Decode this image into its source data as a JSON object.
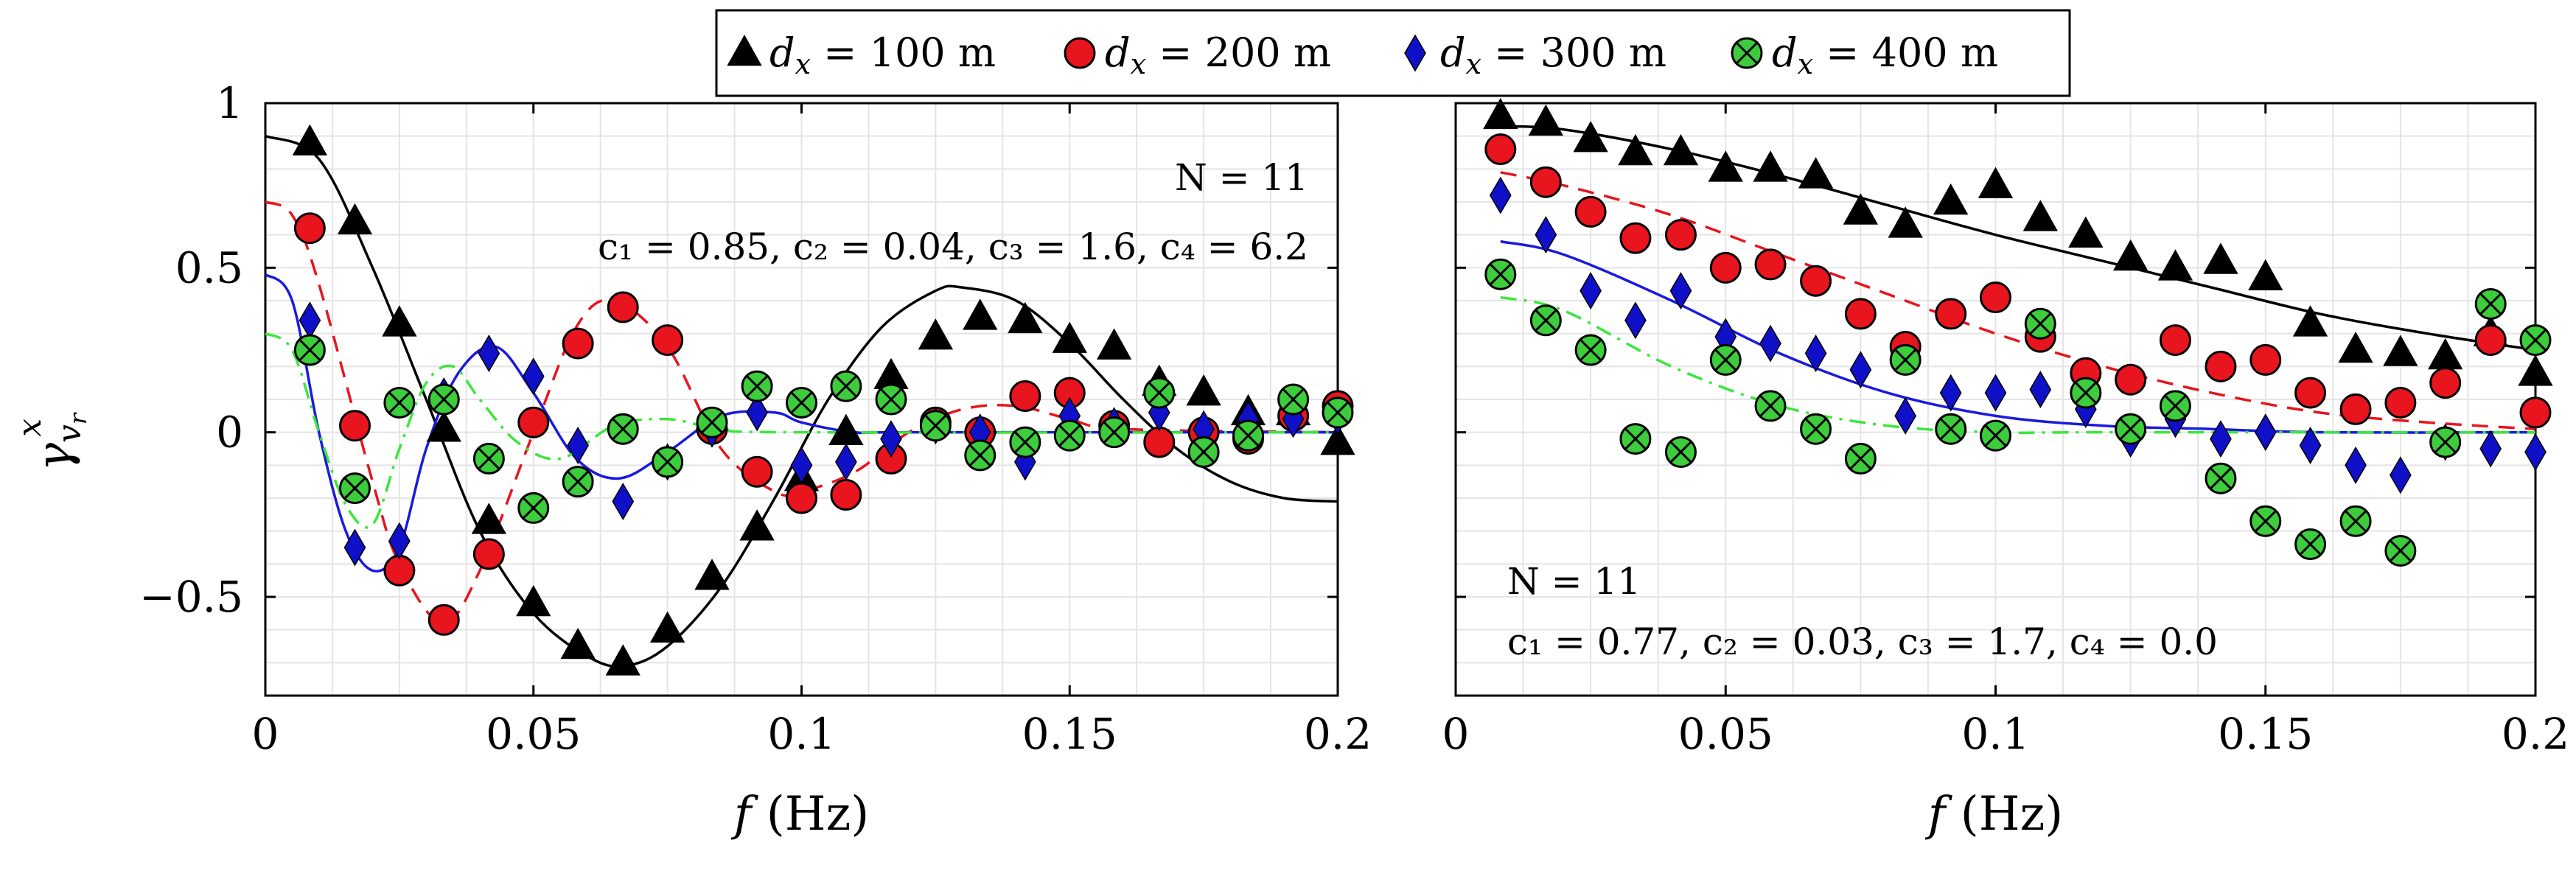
{
  "chart_data": [
    {
      "type": "scatter",
      "panel": "left",
      "xlabel": "f (Hz)",
      "ylabel": "γ^x_{v_r}",
      "xlim": [
        0,
        0.2
      ],
      "ylim": [
        -0.8,
        1.0
      ],
      "xticks": [
        0,
        0.05,
        0.1,
        0.15,
        0.2
      ],
      "xtick_labels": [
        "0",
        "0.05",
        "0.1",
        "0.15",
        "0.2"
      ],
      "yticks": [
        -0.5,
        0,
        0.5,
        1
      ],
      "ytick_labels": [
        "−0.5",
        "0",
        "0.5",
        "1"
      ],
      "grid": true,
      "annotations": [
        "N = 11",
        "c₁ = 0.85, c₂ = 0.04, c₃ = 1.6, c₄ = 6.2"
      ],
      "series": [
        {
          "name": "d_x = 100 m",
          "marker": "triangle",
          "color": "#000000",
          "x": [
            0.0083,
            0.0167,
            0.025,
            0.0333,
            0.0417,
            0.05,
            0.0583,
            0.0667,
            0.075,
            0.0833,
            0.0917,
            0.1,
            0.1083,
            0.1167,
            0.125,
            0.1333,
            0.1417,
            0.15,
            0.1583,
            0.1667,
            0.175,
            0.1833,
            0.1917,
            0.2
          ],
          "y": [
            0.88,
            0.64,
            0.33,
            0.01,
            -0.27,
            -0.52,
            -0.65,
            -0.7,
            -0.6,
            -0.44,
            -0.29,
            -0.14,
            0.0,
            0.17,
            0.29,
            0.35,
            0.34,
            0.28,
            0.26,
            0.15,
            0.12,
            0.06,
            0.06,
            -0.03
          ]
        },
        {
          "name": "d_x = 200 m",
          "marker": "circle",
          "color": "#e8141e",
          "x": [
            0.0083,
            0.0167,
            0.025,
            0.0333,
            0.0417,
            0.05,
            0.0583,
            0.0667,
            0.075,
            0.0833,
            0.0917,
            0.1,
            0.1083,
            0.1167,
            0.125,
            0.1333,
            0.1417,
            0.15,
            0.1583,
            0.1667,
            0.175,
            0.1833,
            0.1917,
            0.2
          ],
          "y": [
            0.62,
            0.02,
            -0.42,
            -0.57,
            -0.37,
            0.03,
            0.27,
            0.38,
            0.28,
            0.01,
            -0.12,
            -0.2,
            -0.19,
            -0.08,
            0.03,
            0.0,
            0.11,
            0.12,
            0.02,
            -0.03,
            0.0,
            -0.02,
            0.05,
            0.08
          ]
        },
        {
          "name": "d_x = 300 m",
          "marker": "diamond",
          "color": "#1010c8",
          "x": [
            0.0083,
            0.0167,
            0.025,
            0.0333,
            0.0417,
            0.05,
            0.0583,
            0.0667,
            0.075,
            0.0833,
            0.0917,
            0.1,
            0.1083,
            0.1167,
            0.125,
            0.1333,
            0.1417,
            0.15,
            0.1583,
            0.1667,
            0.175,
            0.1833,
            0.1917,
            0.2
          ],
          "y": [
            0.34,
            -0.35,
            -0.33,
            0.11,
            0.24,
            0.17,
            -0.04,
            -0.21,
            -0.09,
            0.01,
            0.06,
            -0.1,
            -0.09,
            -0.02,
            0.02,
            0.0,
            -0.09,
            0.05,
            0.02,
            0.06,
            0.01,
            0.04,
            0.04,
            0.05
          ]
        },
        {
          "name": "d_x = 400 m",
          "marker": "circle-cross",
          "color": "#3ccc3c",
          "x": [
            0.0083,
            0.0167,
            0.025,
            0.0333,
            0.0417,
            0.05,
            0.0583,
            0.0667,
            0.075,
            0.0833,
            0.0917,
            0.1,
            0.1083,
            0.1167,
            0.125,
            0.1333,
            0.1417,
            0.15,
            0.1583,
            0.1667,
            0.175,
            0.1833,
            0.1917,
            0.2
          ],
          "y": [
            0.25,
            -0.17,
            0.09,
            0.1,
            -0.08,
            -0.23,
            -0.15,
            0.01,
            -0.09,
            0.03,
            0.14,
            0.09,
            0.14,
            0.1,
            0.02,
            -0.07,
            -0.03,
            -0.01,
            0.0,
            0.12,
            -0.06,
            -0.01,
            0.1,
            0.06
          ]
        }
      ],
      "fit_lines": [
        {
          "name": "d_x = 100 m",
          "style": "solid",
          "color": "#000000",
          "x": [
            0,
            0.01,
            0.02,
            0.03,
            0.04,
            0.05,
            0.06,
            0.067,
            0.075,
            0.085,
            0.095,
            0.105,
            0.115,
            0.125,
            0.13,
            0.14,
            0.15,
            0.16,
            0.17,
            0.18,
            0.19,
            0.2
          ],
          "y": [
            0.9,
            0.83,
            0.5,
            0.1,
            -0.3,
            -0.55,
            -0.68,
            -0.71,
            -0.65,
            -0.47,
            -0.2,
            0.1,
            0.32,
            0.43,
            0.44,
            0.4,
            0.27,
            0.1,
            -0.05,
            -0.15,
            -0.2,
            -0.21
          ]
        },
        {
          "name": "d_x = 200 m",
          "style": "dashed",
          "color": "#e8141e",
          "x": [
            0,
            0.005,
            0.01,
            0.02,
            0.025,
            0.033,
            0.04,
            0.05,
            0.058,
            0.065,
            0.075,
            0.085,
            0.095,
            0.1,
            0.11,
            0.12,
            0.13,
            0.14,
            0.15,
            0.16,
            0.2
          ],
          "y": [
            0.7,
            0.66,
            0.45,
            -0.15,
            -0.4,
            -0.58,
            -0.42,
            0.0,
            0.32,
            0.4,
            0.26,
            -0.05,
            -0.18,
            -0.18,
            -0.12,
            0.0,
            0.07,
            0.08,
            0.04,
            0.01,
            0.0
          ]
        },
        {
          "name": "d_x = 300 m",
          "style": "solid",
          "color": "#1a1ae0",
          "x": [
            0,
            0.005,
            0.01,
            0.015,
            0.02,
            0.025,
            0.03,
            0.036,
            0.043,
            0.05,
            0.058,
            0.066,
            0.075,
            0.085,
            0.095,
            0.1,
            0.11,
            0.12,
            0.2
          ],
          "y": [
            0.48,
            0.4,
            0.0,
            -0.3,
            -0.42,
            -0.35,
            -0.05,
            0.18,
            0.26,
            0.12,
            -0.08,
            -0.14,
            -0.06,
            0.05,
            0.06,
            0.03,
            0.0,
            0.0,
            0.0
          ]
        },
        {
          "name": "d_x = 400 m",
          "style": "dash-dot",
          "color": "#3ce63c",
          "x": [
            0,
            0.005,
            0.01,
            0.015,
            0.02,
            0.025,
            0.03,
            0.035,
            0.04,
            0.047,
            0.055,
            0.065,
            0.075,
            0.085,
            0.1,
            0.2
          ],
          "y": [
            0.3,
            0.25,
            0.0,
            -0.22,
            -0.28,
            -0.05,
            0.15,
            0.2,
            0.1,
            -0.03,
            -0.08,
            0.02,
            0.04,
            0.01,
            0.0,
            0.0
          ]
        }
      ]
    },
    {
      "type": "scatter",
      "panel": "right",
      "xlabel": "f (Hz)",
      "xlim": [
        0,
        0.2
      ],
      "ylim": [
        -0.8,
        1.0
      ],
      "xticks": [
        0,
        0.05,
        0.1,
        0.15,
        0.2
      ],
      "xtick_labels": [
        "0",
        "0.05",
        "0.1",
        "0.15",
        "0.2"
      ],
      "grid": true,
      "annotations": [
        "N = 11",
        "c₁ = 0.77, c₂ = 0.03, c₃ = 1.7, c₄ = 0.0"
      ],
      "series": [
        {
          "name": "d_x = 100 m",
          "marker": "triangle",
          "color": "#000000",
          "x": [
            0.0083,
            0.0167,
            0.025,
            0.0333,
            0.0417,
            0.05,
            0.0583,
            0.0667,
            0.075,
            0.0833,
            0.0917,
            0.1,
            0.1083,
            0.1167,
            0.125,
            0.1333,
            0.1417,
            0.15,
            0.1583,
            0.1667,
            0.175,
            0.1833,
            0.1917,
            0.2
          ],
          "y": [
            0.96,
            0.94,
            0.89,
            0.85,
            0.85,
            0.8,
            0.8,
            0.78,
            0.67,
            0.63,
            0.7,
            0.75,
            0.65,
            0.6,
            0.53,
            0.5,
            0.52,
            0.47,
            0.33,
            0.25,
            0.24,
            0.23,
            0.3,
            0.18
          ]
        },
        {
          "name": "d_x = 200 m",
          "marker": "circle",
          "color": "#e8141e",
          "x": [
            0.0083,
            0.0167,
            0.025,
            0.0333,
            0.0417,
            0.05,
            0.0583,
            0.0667,
            0.075,
            0.0833,
            0.0917,
            0.1,
            0.1083,
            0.1167,
            0.125,
            0.1333,
            0.1417,
            0.15,
            0.1583,
            0.1667,
            0.175,
            0.1833,
            0.1917,
            0.2
          ],
          "y": [
            0.86,
            0.76,
            0.67,
            0.59,
            0.6,
            0.5,
            0.51,
            0.46,
            0.36,
            0.26,
            0.36,
            0.41,
            0.29,
            0.18,
            0.16,
            0.28,
            0.2,
            0.22,
            0.12,
            0.07,
            0.09,
            0.15,
            0.28,
            0.06
          ]
        },
        {
          "name": "d_x = 300 m",
          "marker": "diamond",
          "color": "#1010c8",
          "x": [
            0.0083,
            0.0167,
            0.025,
            0.0333,
            0.0417,
            0.05,
            0.0583,
            0.0667,
            0.075,
            0.0833,
            0.0917,
            0.1,
            0.1083,
            0.1167,
            0.125,
            0.1333,
            0.1417,
            0.15,
            0.1583,
            0.1667,
            0.175,
            0.1833,
            0.1917,
            0.2
          ],
          "y": [
            0.72,
            0.6,
            0.43,
            0.34,
            0.43,
            0.29,
            0.27,
            0.24,
            0.19,
            0.05,
            0.12,
            0.12,
            0.13,
            0.07,
            -0.02,
            0.04,
            -0.02,
            0.0,
            -0.04,
            -0.1,
            -0.13,
            -0.03,
            -0.05,
            -0.06
          ]
        },
        {
          "name": "d_x = 400 m",
          "marker": "circle-cross",
          "color": "#3ccc3c",
          "x": [
            0.0083,
            0.0167,
            0.025,
            0.0333,
            0.0417,
            0.05,
            0.0583,
            0.0667,
            0.075,
            0.0833,
            0.0917,
            0.1,
            0.1083,
            0.1167,
            0.125,
            0.1333,
            0.1417,
            0.15,
            0.1583,
            0.1667,
            0.175,
            0.1833,
            0.1917,
            0.2
          ],
          "y": [
            0.48,
            0.34,
            0.25,
            -0.02,
            -0.06,
            0.22,
            0.08,
            0.01,
            -0.08,
            0.22,
            0.01,
            -0.01,
            0.33,
            0.12,
            0.01,
            0.08,
            -0.14,
            -0.27,
            -0.34,
            -0.27,
            -0.36,
            -0.03,
            0.39,
            0.28
          ]
        }
      ],
      "fit_lines": [
        {
          "name": "d_x = 100 m",
          "style": "solid",
          "color": "#000000",
          "x": [
            0.0083,
            0.02,
            0.04,
            0.06,
            0.08,
            0.1,
            0.12,
            0.14,
            0.16,
            0.18,
            0.2
          ],
          "y": [
            0.93,
            0.92,
            0.86,
            0.78,
            0.69,
            0.6,
            0.52,
            0.44,
            0.36,
            0.3,
            0.25
          ]
        },
        {
          "name": "d_x = 200 m",
          "style": "dashed",
          "color": "#e8141e",
          "x": [
            0.0083,
            0.02,
            0.04,
            0.06,
            0.08,
            0.1,
            0.12,
            0.14,
            0.16,
            0.18,
            0.2
          ],
          "y": [
            0.79,
            0.75,
            0.66,
            0.54,
            0.42,
            0.3,
            0.2,
            0.12,
            0.06,
            0.03,
            0.01
          ]
        },
        {
          "name": "d_x = 300 m",
          "style": "solid",
          "color": "#1a1ae0",
          "x": [
            0.0083,
            0.02,
            0.04,
            0.06,
            0.08,
            0.1,
            0.12,
            0.14,
            0.16,
            0.2
          ],
          "y": [
            0.58,
            0.54,
            0.4,
            0.24,
            0.12,
            0.05,
            0.02,
            0.01,
            0.0,
            0.0
          ]
        },
        {
          "name": "d_x = 400 m",
          "style": "dash-dot",
          "color": "#3ce63c",
          "x": [
            0.0083,
            0.02,
            0.04,
            0.06,
            0.08,
            0.1,
            0.12,
            0.2
          ],
          "y": [
            0.41,
            0.37,
            0.2,
            0.08,
            0.02,
            0.0,
            0.0,
            0.0
          ]
        }
      ]
    }
  ],
  "legend": {
    "placement": "top-center",
    "entries": [
      {
        "label": "dx = 100 m",
        "marker": "triangle",
        "color": "#000000"
      },
      {
        "label": "dx = 200 m",
        "marker": "circle",
        "color": "#e8141e"
      },
      {
        "label": "dx = 300 m",
        "marker": "diamond",
        "color": "#1010c8"
      },
      {
        "label": "dx = 400 m",
        "marker": "circle-cross",
        "color": "#3ccc3c"
      }
    ]
  }
}
